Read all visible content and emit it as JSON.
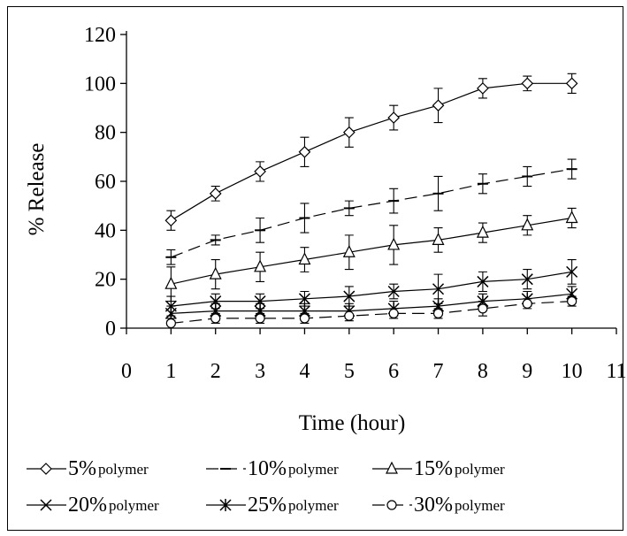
{
  "chart_data": {
    "type": "line",
    "title": "",
    "xlabel": "Time (hour)",
    "ylabel": "% Release",
    "xlim": [
      0,
      11
    ],
    "ylim": [
      0,
      120
    ],
    "xticks": [
      "0",
      "1",
      "2",
      "3",
      "4",
      "5",
      "6",
      "7",
      "8",
      "9",
      "10",
      "11"
    ],
    "yticks": [
      "0",
      "20",
      "40",
      "60",
      "80",
      "100",
      "120"
    ],
    "grid": false,
    "legend_position": "bottom",
    "x": [
      1,
      2,
      3,
      4,
      5,
      6,
      7,
      8,
      9,
      10
    ],
    "series": [
      {
        "name": "5%",
        "name_suffix": "polymer",
        "marker": "diamond",
        "line": "solid",
        "values": [
          44,
          55,
          64,
          72,
          80,
          86,
          91,
          98,
          100,
          100
        ],
        "error": [
          4,
          3,
          4,
          6,
          6,
          5,
          7,
          4,
          3,
          4
        ]
      },
      {
        "name": "10%",
        "name_suffix": "polymer",
        "marker": "dash",
        "line": "dashed",
        "values": [
          29,
          36,
          40,
          45,
          49,
          52,
          55,
          59,
          62,
          65
        ],
        "error": [
          3,
          2,
          5,
          6,
          3,
          5,
          7,
          4,
          4,
          4
        ]
      },
      {
        "name": "15%",
        "name_suffix": "polymer",
        "marker": "triangle",
        "line": "solid",
        "values": [
          18,
          22,
          25,
          28,
          31,
          34,
          36,
          39,
          42,
          45
        ],
        "error": [
          7,
          6,
          6,
          5,
          7,
          8,
          5,
          4,
          4,
          4
        ]
      },
      {
        "name": "20%",
        "name_suffix": "polymer",
        "marker": "x",
        "line": "solid",
        "values": [
          9,
          11,
          11,
          12,
          13,
          15,
          16,
          19,
          20,
          23
        ],
        "error": [
          4,
          3,
          3,
          3,
          4,
          3,
          6,
          4,
          4,
          5
        ]
      },
      {
        "name": "25%",
        "name_suffix": "polymer",
        "marker": "star",
        "line": "solid",
        "values": [
          6,
          7,
          7,
          7,
          7,
          8,
          9,
          11,
          12,
          14
        ],
        "error": [
          3,
          3,
          3,
          3,
          3,
          3,
          3,
          3,
          3,
          3
        ]
      },
      {
        "name": "30%",
        "name_suffix": "polymer",
        "marker": "circle",
        "line": "dashed",
        "values": [
          2,
          4,
          4,
          4,
          5,
          6,
          6,
          8,
          10,
          11
        ],
        "error": [
          2,
          2,
          2,
          2,
          2,
          2,
          2,
          3,
          2,
          2
        ]
      }
    ]
  }
}
